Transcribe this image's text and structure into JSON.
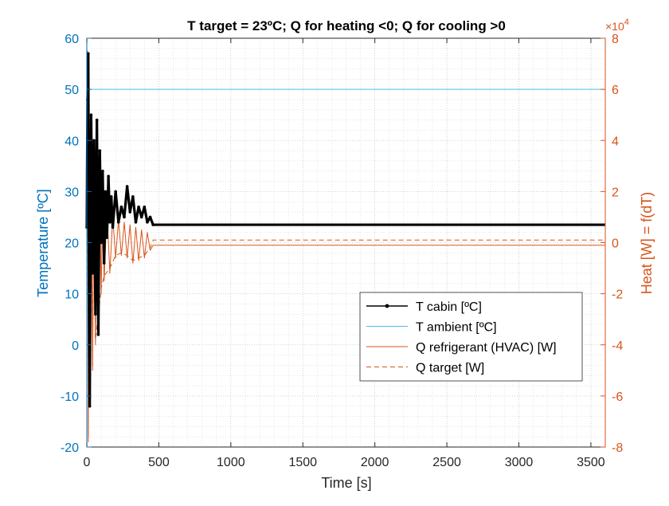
{
  "chart_data": {
    "type": "line",
    "title": "T target = 23ºC; Q for heating <0; Q for cooling >0",
    "xlabel": "Time [s]",
    "ylabel_left": "Temperature [ºC]",
    "ylabel_right": "Heat [W] = f(dT)",
    "right_axis_exponent": "×10",
    "right_axis_exponent_power": "4",
    "xlim": [
      0,
      3600
    ],
    "ylim_left": [
      -20,
      60
    ],
    "ylim_right": [
      -80000,
      80000
    ],
    "x_ticks": [
      "0",
      "500",
      "1000",
      "1500",
      "2000",
      "2500",
      "3000",
      "3500"
    ],
    "y_left_ticks": [
      "-20",
      "-10",
      "0",
      "10",
      "20",
      "30",
      "40",
      "50",
      "60"
    ],
    "y_right_ticks": [
      "-8",
      "-6",
      "-4",
      "-2",
      "0",
      "2",
      "4",
      "6",
      "8"
    ],
    "grid": "minor and major, dotted",
    "legend_position": "lower-right",
    "colors": {
      "left_axis": "#0072BD",
      "right_axis": "#D95319",
      "t_cabin": "#000000",
      "t_ambient": "#4DBEEE",
      "q_refrigerant": "#D95319",
      "q_target": "#D95319"
    },
    "series": [
      {
        "name": "T cabin [ºC]",
        "axis": "left",
        "style": "solid with dot markers",
        "x": [
          0,
          5,
          10,
          15,
          20,
          30,
          40,
          50,
          60,
          70,
          80,
          90,
          100,
          110,
          120,
          130,
          140,
          150,
          160,
          170,
          180,
          200,
          220,
          240,
          260,
          280,
          300,
          320,
          340,
          360,
          380,
          400,
          420,
          440,
          460,
          500,
          1000,
          2000,
          3000,
          3600
        ],
        "y": [
          23,
          48,
          57,
          10,
          -12,
          45,
          14,
          40,
          6,
          44,
          2,
          38,
          20,
          34,
          16,
          30,
          21,
          33,
          24,
          29,
          23,
          30,
          24,
          27,
          25,
          31,
          26,
          29,
          24,
          27,
          25,
          27,
          24,
          25,
          23.5,
          23.5,
          23.5,
          23.5,
          23.5,
          23.5
        ]
      },
      {
        "name": "T ambient [ºC]",
        "axis": "left",
        "style": "solid",
        "x": [
          0,
          3600
        ],
        "y": [
          50,
          50
        ]
      },
      {
        "name": "Q refrigerant (HVAC) [W]",
        "axis": "right",
        "style": "solid",
        "x": [
          0,
          5,
          10,
          15,
          20,
          30,
          40,
          50,
          60,
          70,
          80,
          90,
          100,
          110,
          120,
          140,
          160,
          180,
          200,
          220,
          240,
          260,
          280,
          300,
          320,
          340,
          360,
          380,
          400,
          420,
          440,
          460,
          3600
        ],
        "y": [
          0,
          75000,
          -78000,
          50000,
          -60000,
          45000,
          -50000,
          30000,
          -40000,
          25000,
          -30000,
          20000,
          -20000,
          15000,
          -15000,
          12000,
          -12000,
          10000,
          -6000,
          9000,
          -5000,
          8000,
          -6000,
          7000,
          -8000,
          6000,
          -7000,
          5000,
          -6000,
          4000,
          -3000,
          -1000,
          -1000
        ]
      },
      {
        "name": "Q target [W]",
        "axis": "right",
        "style": "dashed",
        "x": [
          0,
          5,
          10,
          15,
          20,
          30,
          40,
          50,
          60,
          80,
          100,
          120,
          160,
          200,
          240,
          280,
          320,
          360,
          400,
          440,
          460,
          3600
        ],
        "y": [
          0,
          72000,
          -76000,
          48000,
          -58000,
          42000,
          -48000,
          28000,
          -38000,
          -28000,
          -18000,
          -13000,
          -10000,
          -5000,
          -4000,
          -5000,
          -7000,
          -6000,
          -5000,
          -2000,
          1000,
          1000
        ]
      }
    ]
  }
}
